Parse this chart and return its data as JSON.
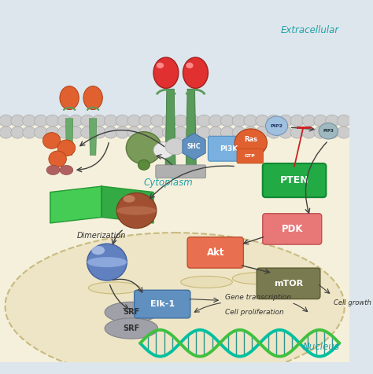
{
  "extracellular_color": "#dde6ec",
  "cytoplasm_color": "#f5f0dc",
  "nucleus_color": "#ede5c5",
  "title_extracellular": "Extracellular",
  "title_cytoplasm": "Cytoplasm",
  "title_nucleus": "Nucleus",
  "label_dimerization": "Dimerization",
  "label_gene_transcription": "Gene transcription",
  "label_cell_proliferation": "Cell proliferation",
  "label_cell_growth": "Cell growth",
  "receptor_stem_color": "#5a8a5a",
  "receptor_bulb_color": "#e03030",
  "pten_color": "#22aa44",
  "pdk_color": "#e87878",
  "akt_color": "#e87050",
  "mtor_color": "#7a7a50",
  "elk1_color": "#6090c0",
  "pi3k_color": "#6090c0",
  "ras_color": "#e06030",
  "shc_color": "#5080c0",
  "pip2_color": "#90b8d8",
  "pip3_color": "#a0b8c0",
  "srf_color": "#a0a0a8",
  "dna_color1": "#00c0a0",
  "dna_color2": "#50c050",
  "arrow_color": "#404040",
  "inhibit_color": "#cc2020",
  "text_italic_color": "#20a0a8",
  "green_complex_color": "#7a9a5a",
  "book_color": "#33bb44",
  "brown_sphere_color": "#a05030",
  "blue_sphere_color": "#6080c0"
}
